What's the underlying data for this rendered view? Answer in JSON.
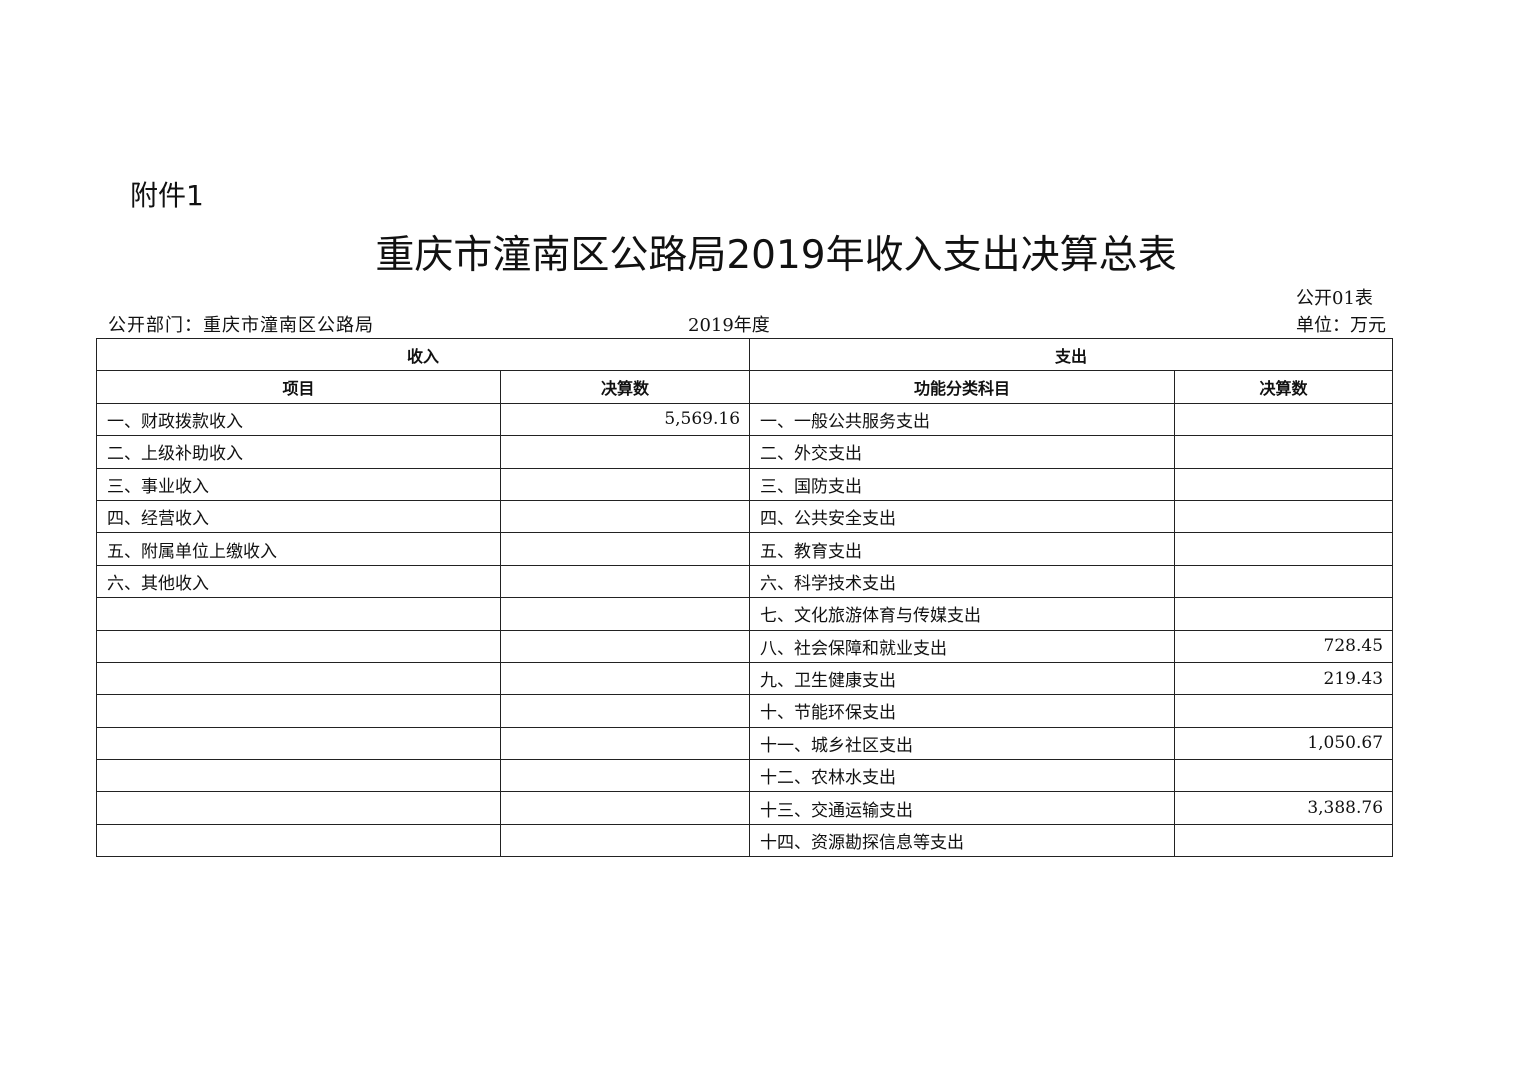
{
  "attachment_label": "附件1",
  "title": "重庆市潼南区公路局2019年收入支出决算总表",
  "form_no": "公开01表",
  "department": "公开部门：重庆市潼南区公路局",
  "year": "2019年度",
  "unit": "单位：万元",
  "table": {
    "group_headers": [
      "收入",
      "支出"
    ],
    "column_headers": [
      "项目",
      "决算数",
      "功能分类科目",
      "决算数"
    ],
    "rows": [
      [
        "一、财政拨款收入",
        "5,569.16",
        "一、一般公共服务支出",
        ""
      ],
      [
        "二、上级补助收入",
        "",
        "二、外交支出",
        ""
      ],
      [
        "三、事业收入",
        "",
        "三、国防支出",
        ""
      ],
      [
        "四、经营收入",
        "",
        "四、公共安全支出",
        ""
      ],
      [
        "五、附属单位上缴收入",
        "",
        "五、教育支出",
        ""
      ],
      [
        "六、其他收入",
        "",
        "六、科学技术支出",
        ""
      ],
      [
        "",
        "",
        "七、文化旅游体育与传媒支出",
        ""
      ],
      [
        "",
        "",
        "八、社会保障和就业支出",
        "728.45"
      ],
      [
        "",
        "",
        "九、卫生健康支出",
        "219.43"
      ],
      [
        "",
        "",
        "十、节能环保支出",
        ""
      ],
      [
        "",
        "",
        "十一、城乡社区支出",
        "1,050.67"
      ],
      [
        "",
        "",
        "十二、农林水支出",
        ""
      ],
      [
        "",
        "",
        "十三、交通运输支出",
        "3,388.76"
      ],
      [
        "",
        "",
        "十四、资源勘探信息等支出",
        ""
      ]
    ]
  }
}
